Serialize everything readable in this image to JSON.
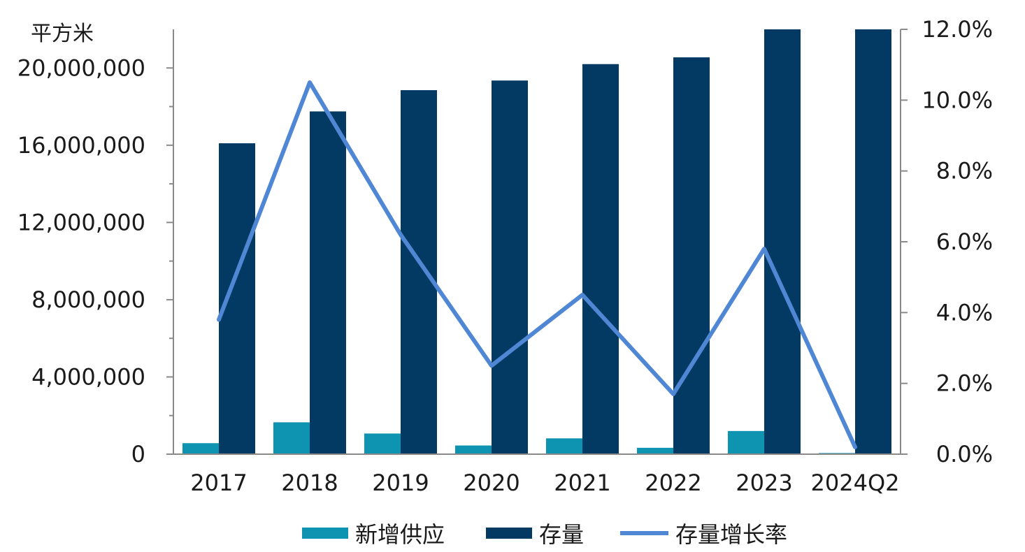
{
  "chart_data": {
    "type": "bar",
    "y_unit_label": "平方米",
    "categories": [
      "2017",
      "2018",
      "2019",
      "2020",
      "2021",
      "2022",
      "2023",
      "2024Q2"
    ],
    "series": [
      {
        "name": "新增供应",
        "kind": "bar",
        "axis": "left",
        "color": "#0e93b1",
        "values": [
          570000,
          1650000,
          1070000,
          450000,
          820000,
          330000,
          1200000,
          60000
        ]
      },
      {
        "name": "存量",
        "kind": "bar",
        "axis": "left",
        "color": "#023a63",
        "values": [
          16100000,
          17750000,
          18850000,
          19350000,
          20200000,
          20550000,
          22000000,
          22000000
        ]
      },
      {
        "name": "存量增长率",
        "kind": "line",
        "axis": "right",
        "color": "#4f87d4",
        "values": [
          0.038,
          0.105,
          0.062,
          0.025,
          0.045,
          0.017,
          0.058,
          0.002
        ]
      }
    ],
    "y_left": {
      "min": 0,
      "max": 22000000,
      "ticks": [
        0,
        4000000,
        8000000,
        12000000,
        16000000,
        20000000
      ],
      "tick_labels": [
        "0",
        "4,000,000",
        "8,000,000",
        "12,000,000",
        "16,000,000",
        "20,000,000"
      ]
    },
    "y_right": {
      "min": 0,
      "max": 0.12,
      "ticks": [
        0,
        0.02,
        0.04,
        0.06,
        0.08,
        0.1,
        0.12
      ],
      "tick_labels": [
        "0.0%",
        "2.0%",
        "4.0%",
        "6.0%",
        "8.0%",
        "10.0%",
        "12.0%"
      ]
    },
    "grid": false,
    "legend_position": "bottom"
  }
}
